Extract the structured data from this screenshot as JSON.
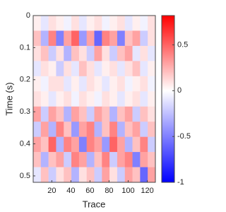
{
  "chart_data": {
    "type": "heatmap",
    "x_label": "Trace",
    "y_label": "Time (s)",
    "xlim": [
      0.5,
      128.5
    ],
    "xticks": [
      20,
      40,
      60,
      80,
      100,
      120
    ],
    "ylim": [
      0,
      0.52
    ],
    "yticks": [
      0,
      0.1,
      0.2,
      0.3,
      0.4,
      0.5
    ],
    "y_reversed": true,
    "z": [
      [
        0.05,
        -0.1,
        0.1,
        0.05,
        -0.05,
        0.1,
        -0.1,
        0.05,
        0.1,
        -0.05,
        0.05,
        0.1,
        -0.1,
        0.05,
        -0.05,
        0.1
      ],
      [
        0.2,
        -0.3,
        0.4,
        -0.5,
        0.3,
        0.5,
        -0.4,
        0.3,
        -0.6,
        0.4,
        0.3,
        -0.5,
        0.2,
        0.3,
        -0.2,
        0.1
      ],
      [
        0.1,
        0.2,
        -0.2,
        0.1,
        -0.3,
        0.2,
        0.1,
        -0.2,
        0.3,
        0.1,
        -0.2,
        0.2,
        0.3,
        -0.1,
        0.1,
        -0.1
      ],
      [
        -0.1,
        0.1,
        0.05,
        -0.2,
        0.1,
        -0.1,
        0.2,
        0.1,
        -0.1,
        0.05,
        0.1,
        -0.1,
        0.1,
        0.2,
        -0.1,
        0.05
      ],
      [
        0.05,
        -0.05,
        0.1,
        0.1,
        -0.1,
        0.05,
        -0.1,
        0.1,
        0.05,
        -0.1,
        0.05,
        0.1,
        -0.05,
        0.05,
        0.1,
        -0.05
      ],
      [
        0.1,
        0.05,
        -0.1,
        0.05,
        0.1,
        -0.05,
        0.1,
        0.05,
        -0.05,
        0.1,
        0.05,
        -0.1,
        0.05,
        0.1,
        -0.1,
        0.05
      ],
      [
        0.3,
        -0.2,
        0.3,
        0.2,
        -0.3,
        0.3,
        0.2,
        -0.2,
        0.3,
        0.2,
        -0.3,
        0.2,
        0.3,
        -0.2,
        0.2,
        0.1
      ],
      [
        -0.2,
        0.3,
        -0.3,
        0.4,
        0.2,
        -0.4,
        0.3,
        0.4,
        -0.3,
        0.2,
        0.4,
        -0.3,
        0.2,
        0.3,
        -0.2,
        0.2
      ],
      [
        0.3,
        0.2,
        0.5,
        -0.3,
        0.4,
        0.3,
        -0.5,
        0.4,
        0.3,
        -0.4,
        0.5,
        0.3,
        -0.3,
        0.2,
        0.4,
        -0.2
      ],
      [
        0.2,
        -0.3,
        0.2,
        0.3,
        -0.2,
        0.4,
        0.3,
        -0.3,
        0.2,
        0.4,
        -0.2,
        0.3,
        0.4,
        -0.5,
        0.3,
        0.2
      ],
      [
        -0.1,
        0.2,
        -0.2,
        0.1,
        0.2,
        -0.3,
        0.1,
        0.2,
        -0.2,
        0.3,
        0.1,
        -0.2,
        0.3,
        0.2,
        -0.6,
        0.3
      ]
    ],
    "clim": [
      -1,
      0.82
    ],
    "cticks": [
      -1,
      -0.5,
      0,
      0.5
    ],
    "colormap": [
      "#0000ff",
      "#ffffff",
      "#ff0000"
    ]
  }
}
